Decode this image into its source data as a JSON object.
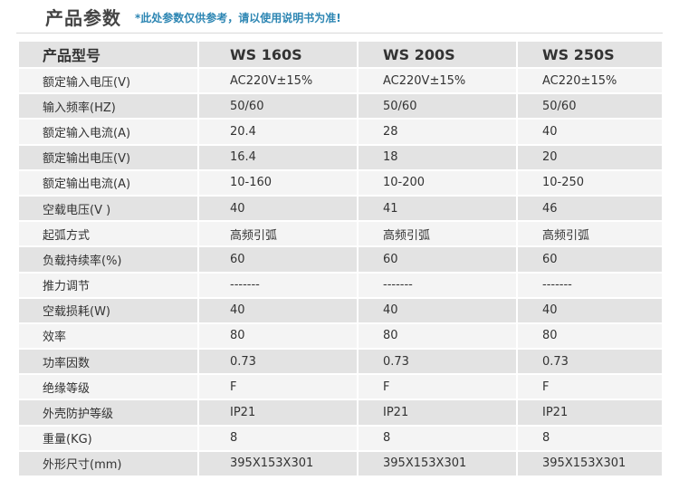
{
  "header": {
    "title": "产品参数",
    "note": "*此处参数仅供参考，请以使用说明书为准!"
  },
  "table": {
    "header_label": "产品型号",
    "models": [
      "WS 160S",
      "WS 200S",
      "WS 250S"
    ],
    "rows": [
      {
        "param": "额定输入电压(V)",
        "values": [
          "AC220V±15%",
          "AC220V±15%",
          "AC220±15%"
        ]
      },
      {
        "param": "输入频率(HZ)",
        "values": [
          "50/60",
          "50/60",
          "50/60"
        ]
      },
      {
        "param": "额定输入电流(A)",
        "values": [
          "20.4",
          "28",
          "40"
        ]
      },
      {
        "param": "额定输出电压(V)",
        "values": [
          "16.4",
          "18",
          "20"
        ]
      },
      {
        "param": "额定输出电流(A)",
        "values": [
          "10-160",
          "10-200",
          "10-250"
        ]
      },
      {
        "param": "空载电压(V )",
        "values": [
          "40",
          "41",
          "46"
        ]
      },
      {
        "param": "起弧方式",
        "values": [
          "高频引弧",
          "高频引弧",
          "高频引弧"
        ]
      },
      {
        "param": "负载持续率(%)",
        "values": [
          "60",
          "60",
          "60"
        ]
      },
      {
        "param": "推力调节",
        "values": [
          "-------",
          "-------",
          "-------"
        ]
      },
      {
        "param": "空载损耗(W)",
        "values": [
          "40",
          "40",
          "40"
        ]
      },
      {
        "param": "效率",
        "values": [
          "80",
          "80",
          "80"
        ]
      },
      {
        "param": "功率因数",
        "values": [
          "0.73",
          "0.73",
          "0.73"
        ]
      },
      {
        "param": "绝缘等级",
        "values": [
          "F",
          "F",
          "F"
        ]
      },
      {
        "param": "外壳防护等级",
        "values": [
          "IP21",
          "IP21",
          "IP21"
        ]
      },
      {
        "param": "重量(KG)",
        "values": [
          "8",
          "8",
          "8"
        ]
      },
      {
        "param": "外形尺寸(mm)",
        "values": [
          "395X153X301",
          "395X153X301",
          "395X153X301"
        ]
      }
    ]
  }
}
